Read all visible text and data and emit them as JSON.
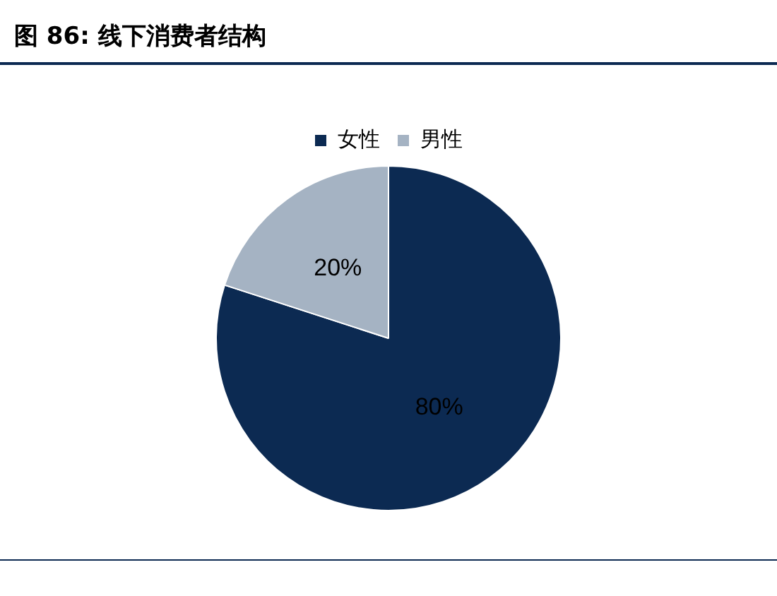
{
  "chart_data": {
    "type": "pie",
    "title": "图 86:  线下消费者结构",
    "categories": [
      "女性",
      "男性"
    ],
    "values": [
      80,
      20
    ],
    "colors": [
      "#0c2a52",
      "#a5b3c3"
    ],
    "legend": "top",
    "value_labels": [
      "80%",
      "20%"
    ]
  }
}
